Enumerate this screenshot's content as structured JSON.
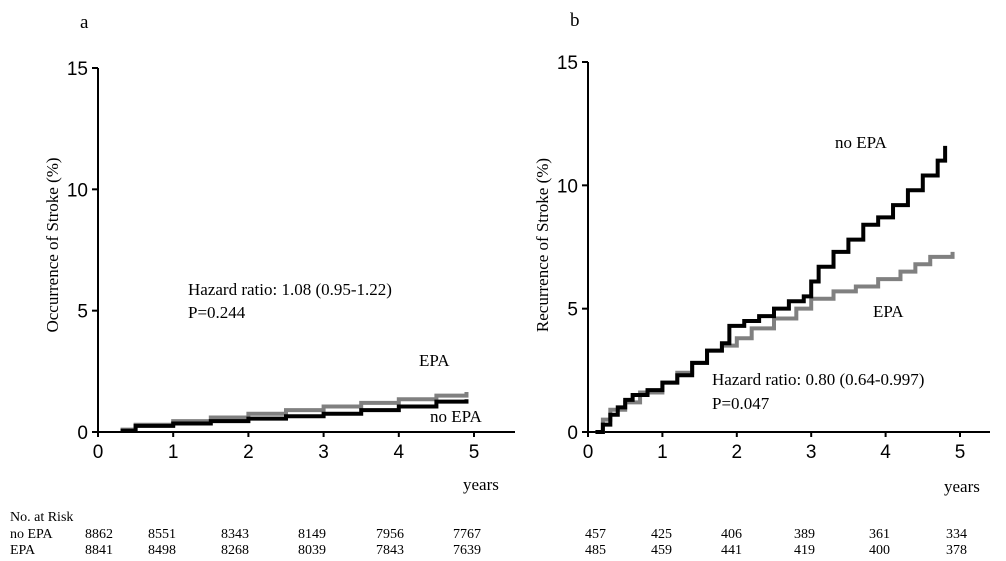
{
  "chart_data": [
    {
      "panel_label": "a",
      "type": "line",
      "ylabel": "Occurrence of Stroke (%)",
      "xlabel": "years",
      "xlim": [
        0,
        5.5
      ],
      "ylim": [
        0,
        15
      ],
      "xticks": [
        "0",
        "1",
        "2",
        "3",
        "4",
        "5"
      ],
      "yticks": [
        "0",
        "5",
        "10",
        "15"
      ],
      "colors": {
        "no_EPA": "#000000",
        "EPA": "#808080"
      },
      "series": [
        {
          "name": "no EPA",
          "color": "#000000",
          "type": "step",
          "x": [
            0.3,
            0.5,
            1.0,
            1.5,
            2.0,
            2.5,
            3.0,
            3.5,
            4.0,
            4.5,
            4.9
          ],
          "y": [
            0.05,
            0.25,
            0.35,
            0.45,
            0.55,
            0.65,
            0.75,
            0.9,
            1.05,
            1.25,
            1.35
          ]
        },
        {
          "name": "EPA",
          "color": "#808080",
          "type": "step",
          "x": [
            0.3,
            0.5,
            1.0,
            1.5,
            2.0,
            2.5,
            3.0,
            3.5,
            4.0,
            4.5,
            4.9
          ],
          "y": [
            0.1,
            0.3,
            0.45,
            0.6,
            0.75,
            0.9,
            1.05,
            1.2,
            1.35,
            1.5,
            1.65
          ]
        }
      ],
      "annotations": [
        {
          "label_key": "no_epa",
          "text": "no EPA"
        },
        {
          "label_key": "epa",
          "text": "EPA"
        }
      ],
      "hazard_text": "Hazard ratio: 1.08 (0.95-1.22)",
      "p_text": "P=0.244",
      "risk_title": "No. at Risk",
      "risk_rows": [
        {
          "label": "no EPA",
          "values": [
            "8862",
            "8551",
            "8343",
            "8149",
            "7956",
            "7767"
          ]
        },
        {
          "label": "EPA",
          "values": [
            "8841",
            "8498",
            "8268",
            "8039",
            "7843",
            "7639"
          ]
        }
      ]
    },
    {
      "panel_label": "b",
      "type": "line",
      "ylabel": "Recurrence of Stroke (%)",
      "xlabel": "years",
      "xlim": [
        0,
        5.5
      ],
      "ylim": [
        0,
        15
      ],
      "xticks": [
        "0",
        "1",
        "2",
        "3",
        "4",
        "5"
      ],
      "yticks": [
        "0",
        "5",
        "10",
        "15"
      ],
      "colors": {
        "no_EPA": "#000000",
        "EPA": "#808080"
      },
      "series": [
        {
          "name": "no EPA",
          "color": "#000000",
          "type": "step",
          "x": [
            0.1,
            0.2,
            0.3,
            0.4,
            0.5,
            0.6,
            0.8,
            1.0,
            1.2,
            1.4,
            1.6,
            1.8,
            1.9,
            2.1,
            2.3,
            2.5,
            2.7,
            2.9,
            3.0,
            3.1,
            3.3,
            3.5,
            3.7,
            3.9,
            4.1,
            4.3,
            4.5,
            4.7,
            4.8
          ],
          "y": [
            0.0,
            0.3,
            0.7,
            1.0,
            1.3,
            1.5,
            1.7,
            2.0,
            2.3,
            2.8,
            3.3,
            3.6,
            4.3,
            4.5,
            4.7,
            5.0,
            5.3,
            5.5,
            6.1,
            6.7,
            7.3,
            7.8,
            8.4,
            8.7,
            9.2,
            9.8,
            10.4,
            11.0,
            11.6
          ]
        },
        {
          "name": "EPA",
          "color": "#808080",
          "type": "step",
          "x": [
            0.1,
            0.2,
            0.3,
            0.5,
            0.7,
            1.0,
            1.2,
            1.4,
            1.6,
            1.8,
            2.0,
            2.2,
            2.5,
            2.8,
            3.0,
            3.3,
            3.6,
            3.9,
            4.2,
            4.4,
            4.6,
            4.9
          ],
          "y": [
            0.0,
            0.5,
            0.9,
            1.2,
            1.6,
            2.0,
            2.4,
            2.8,
            3.3,
            3.5,
            3.8,
            4.2,
            4.6,
            5.0,
            5.4,
            5.7,
            5.9,
            6.2,
            6.5,
            6.8,
            7.1,
            7.3
          ]
        }
      ],
      "annotations": [
        {
          "label_key": "no_epa",
          "text": "no EPA"
        },
        {
          "label_key": "epa",
          "text": "EPA"
        }
      ],
      "hazard_text": "Hazard ratio: 0.80 (0.64-0.997)",
      "p_text": "P=0.047",
      "risk_rows": [
        {
          "label": "no EPA",
          "values": [
            "457",
            "425",
            "406",
            "389",
            "361",
            "334"
          ]
        },
        {
          "label": "EPA",
          "values": [
            "485",
            "459",
            "441",
            "419",
            "400",
            "378"
          ]
        }
      ]
    }
  ]
}
